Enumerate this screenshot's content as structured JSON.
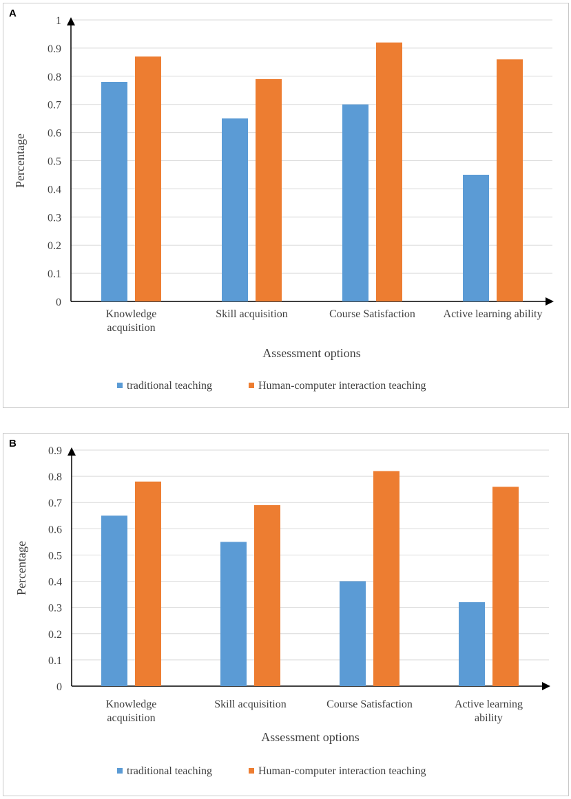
{
  "chart_data": [
    {
      "panel": "A",
      "type": "bar",
      "categories": [
        [
          "Knowledge",
          "acquisition"
        ],
        [
          "Skill acquisition"
        ],
        [
          "Course Satisfaction"
        ],
        [
          "Active learning ability"
        ]
      ],
      "series": [
        {
          "name": "traditional teaching",
          "color": "#5B9BD5",
          "values": [
            0.78,
            0.65,
            0.7,
            0.45
          ]
        },
        {
          "name": "Human-computer interaction teaching",
          "color": "#ED7D31",
          "values": [
            0.87,
            0.79,
            0.92,
            0.86
          ]
        }
      ],
      "xlabel": "Assessment options",
      "ylabel": "Percentage",
      "ylim": [
        0,
        1
      ],
      "yticks": [
        "0",
        "0.1",
        "0.2",
        "0.3",
        "0.4",
        "0.5",
        "0.6",
        "0.7",
        "0.8",
        "0.9",
        "1"
      ],
      "grid": true,
      "legend": "bottom"
    },
    {
      "panel": "B",
      "type": "bar",
      "categories": [
        [
          "Knowledge",
          "acquisition"
        ],
        [
          "Skill acquisition"
        ],
        [
          "Course Satisfaction"
        ],
        [
          "Active learning",
          "ability"
        ]
      ],
      "series": [
        {
          "name": "traditional teaching",
          "color": "#5B9BD5",
          "values": [
            0.65,
            0.55,
            0.4,
            0.32
          ]
        },
        {
          "name": "Human-computer interaction teaching",
          "color": "#ED7D31",
          "values": [
            0.78,
            0.69,
            0.82,
            0.76
          ]
        }
      ],
      "xlabel": "Assessment options",
      "ylabel": "Percentage",
      "ylim": [
        0,
        0.9
      ],
      "yticks": [
        "0",
        "0.1",
        "0.2",
        "0.3",
        "0.4",
        "0.5",
        "0.6",
        "0.7",
        "0.8",
        "0.9"
      ],
      "grid": true,
      "legend": "bottom"
    }
  ]
}
